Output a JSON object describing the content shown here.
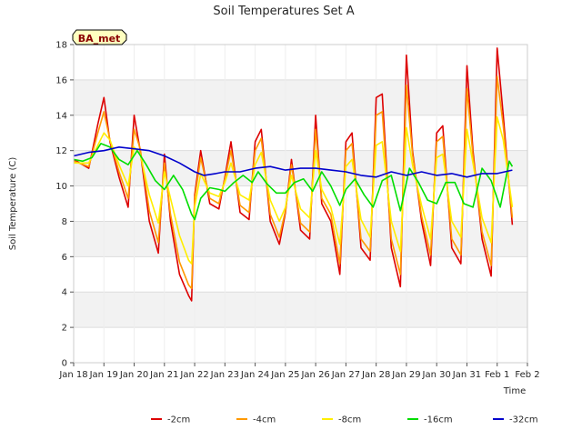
{
  "chart_data": {
    "type": "line",
    "title": "Soil Temperatures Set A",
    "xlabel": "Time",
    "ylabel": "Soil Temperature (C)",
    "badge": "BA_met",
    "ylim": [
      0,
      18
    ],
    "yticks": [
      0,
      2,
      4,
      6,
      8,
      10,
      12,
      14,
      16,
      18
    ],
    "xlim": [
      0,
      15
    ],
    "xticks": [
      {
        "v": 0,
        "label": "Jan 18"
      },
      {
        "v": 1,
        "label": "Jan 19"
      },
      {
        "v": 2,
        "label": "Jan 20"
      },
      {
        "v": 3,
        "label": "Jan 21"
      },
      {
        "v": 4,
        "label": "Jan 22"
      },
      {
        "v": 5,
        "label": "Jan 23"
      },
      {
        "v": 6,
        "label": "Jan 24"
      },
      {
        "v": 7,
        "label": "Jan 25"
      },
      {
        "v": 8,
        "label": "Jan 26"
      },
      {
        "v": 9,
        "label": "Jan 27"
      },
      {
        "v": 10,
        "label": "Jan 28"
      },
      {
        "v": 11,
        "label": "Jan 29"
      },
      {
        "v": 12,
        "label": "Jan 30"
      },
      {
        "v": 13,
        "label": "Jan 31"
      },
      {
        "v": 14,
        "label": "Feb 1"
      },
      {
        "v": 15,
        "label": "Feb 2"
      }
    ],
    "grid": true,
    "legend_position": "bottom",
    "series": [
      {
        "name": "-2cm",
        "color": "#dd0000",
        "x": [
          0,
          0.5,
          0.8,
          1.0,
          1.2,
          1.5,
          1.8,
          2.0,
          2.2,
          2.5,
          2.8,
          3.0,
          3.2,
          3.5,
          3.8,
          3.9,
          4.0,
          4.2,
          4.5,
          4.8,
          5.0,
          5.2,
          5.5,
          5.8,
          6.0,
          6.2,
          6.5,
          6.8,
          7.0,
          7.2,
          7.5,
          7.8,
          8.0,
          8.2,
          8.5,
          8.8,
          9.0,
          9.2,
          9.5,
          9.8,
          10.0,
          10.2,
          10.5,
          10.8,
          11.0,
          11.2,
          11.5,
          11.8,
          12.0,
          12.2,
          12.5,
          12.8,
          13.0,
          13.2,
          13.5,
          13.8,
          14.0,
          14.2,
          14.5
        ],
        "y": [
          11.5,
          11.0,
          13.5,
          15.0,
          12.5,
          10.5,
          8.8,
          14.0,
          12.0,
          8.0,
          6.2,
          11.8,
          8.0,
          5.0,
          3.8,
          3.5,
          9.5,
          12.0,
          9.0,
          8.7,
          10.5,
          12.5,
          8.5,
          8.1,
          12.5,
          13.2,
          8.0,
          6.7,
          8.5,
          11.5,
          7.5,
          7.0,
          14.0,
          9.0,
          8.0,
          5.0,
          12.5,
          13.0,
          6.5,
          5.8,
          15.0,
          15.2,
          6.5,
          4.3,
          17.4,
          12.0,
          8.0,
          5.5,
          13.0,
          13.4,
          6.5,
          5.6,
          16.8,
          12.0,
          7.0,
          4.9,
          17.8,
          14.0,
          7.8
        ]
      },
      {
        "name": "-4cm",
        "color": "#ff9900",
        "x": [
          0,
          0.5,
          0.8,
          1.0,
          1.2,
          1.5,
          1.8,
          2.0,
          2.2,
          2.5,
          2.8,
          3.0,
          3.2,
          3.5,
          3.8,
          3.9,
          4.0,
          4.2,
          4.5,
          4.8,
          5.0,
          5.2,
          5.5,
          5.8,
          6.0,
          6.2,
          6.5,
          6.8,
          7.0,
          7.2,
          7.5,
          7.8,
          8.0,
          8.2,
          8.5,
          8.8,
          9.0,
          9.2,
          9.5,
          9.8,
          10.0,
          10.2,
          10.5,
          10.8,
          11.0,
          11.2,
          11.5,
          11.8,
          12.0,
          12.2,
          12.5,
          12.8,
          13.0,
          13.2,
          13.5,
          13.8,
          14.0,
          14.2,
          14.5
        ],
        "y": [
          11.4,
          11.1,
          13.0,
          14.2,
          12.6,
          10.8,
          9.3,
          13.2,
          12.1,
          8.6,
          6.8,
          11.3,
          8.4,
          5.7,
          4.4,
          4.2,
          9.3,
          11.6,
          9.3,
          9.0,
          10.4,
          12.0,
          8.9,
          8.5,
          12.0,
          12.7,
          8.4,
          7.1,
          8.6,
          11.2,
          7.9,
          7.4,
          13.2,
          9.3,
          8.4,
          5.6,
          12.0,
          12.4,
          7.0,
          6.3,
          14.0,
          14.2,
          7.0,
          5.0,
          15.7,
          11.8,
          8.3,
          6.1,
          12.5,
          12.8,
          7.0,
          6.1,
          15.5,
          11.7,
          7.4,
          5.5,
          16.2,
          13.4,
          8.2
        ]
      },
      {
        "name": "-8cm",
        "color": "#ffee00",
        "x": [
          0,
          0.5,
          0.8,
          1.0,
          1.2,
          1.5,
          1.8,
          2.0,
          2.2,
          2.5,
          2.8,
          3.0,
          3.2,
          3.5,
          3.8,
          3.9,
          4.0,
          4.2,
          4.5,
          4.8,
          5.0,
          5.2,
          5.5,
          5.8,
          6.0,
          6.2,
          6.5,
          6.8,
          7.0,
          7.2,
          7.5,
          7.8,
          8.0,
          8.2,
          8.5,
          8.8,
          9.0,
          9.2,
          9.5,
          9.8,
          10.0,
          10.2,
          10.5,
          10.8,
          11.0,
          11.2,
          11.5,
          11.8,
          12.0,
          12.2,
          12.5,
          12.8,
          13.0,
          13.2,
          13.5,
          13.8,
          14.0,
          14.2,
          14.5
        ],
        "y": [
          11.3,
          11.3,
          12.3,
          13.0,
          12.6,
          11.2,
          10.0,
          12.2,
          11.8,
          9.5,
          7.9,
          10.8,
          9.3,
          7.2,
          5.8,
          5.6,
          8.8,
          10.7,
          9.6,
          9.4,
          10.2,
          11.3,
          9.5,
          9.2,
          11.2,
          11.9,
          9.2,
          8.0,
          8.8,
          10.6,
          8.7,
          8.2,
          12.0,
          9.8,
          8.8,
          6.7,
          11.1,
          11.5,
          8.1,
          7.1,
          12.3,
          12.5,
          8.0,
          6.3,
          13.3,
          11.2,
          8.9,
          7.0,
          11.6,
          11.8,
          8.0,
          7.1,
          13.2,
          11.3,
          8.2,
          6.8,
          13.9,
          12.6,
          8.8
        ]
      },
      {
        "name": "-16cm",
        "color": "#00dd00",
        "x": [
          0,
          0.3,
          0.6,
          0.9,
          1.2,
          1.5,
          1.8,
          2.1,
          2.4,
          2.7,
          3.0,
          3.3,
          3.6,
          3.9,
          4.0,
          4.2,
          4.5,
          4.8,
          5.0,
          5.3,
          5.6,
          5.9,
          6.1,
          6.4,
          6.7,
          7.0,
          7.3,
          7.6,
          7.9,
          8.2,
          8.5,
          8.8,
          9.0,
          9.3,
          9.6,
          9.9,
          10.2,
          10.5,
          10.8,
          11.1,
          11.4,
          11.7,
          12.0,
          12.3,
          12.6,
          12.9,
          13.2,
          13.5,
          13.8,
          14.1,
          14.4,
          14.5
        ],
        "y": [
          11.5,
          11.4,
          11.6,
          12.4,
          12.2,
          11.5,
          11.2,
          12.0,
          11.2,
          10.3,
          9.8,
          10.6,
          9.8,
          8.4,
          8.1,
          9.3,
          9.9,
          9.8,
          9.7,
          10.2,
          10.6,
          10.2,
          10.8,
          10.1,
          9.6,
          9.6,
          10.2,
          10.4,
          9.7,
          10.8,
          10.0,
          8.9,
          9.8,
          10.4,
          9.5,
          8.8,
          10.3,
          10.6,
          8.6,
          11.0,
          10.2,
          9.2,
          9.0,
          10.2,
          10.2,
          9.0,
          8.8,
          11.0,
          10.3,
          8.8,
          11.4,
          11.1
        ]
      },
      {
        "name": "-32cm",
        "color": "#0000cc",
        "x": [
          0,
          0.5,
          1.0,
          1.5,
          2.0,
          2.5,
          3.0,
          3.5,
          4.0,
          4.3,
          4.7,
          5.0,
          5.5,
          6.0,
          6.5,
          7.0,
          7.5,
          8.0,
          8.5,
          9.0,
          9.5,
          10.0,
          10.5,
          11.0,
          11.5,
          12.0,
          12.5,
          13.0,
          13.5,
          14.0,
          14.5
        ],
        "y": [
          11.7,
          11.9,
          12.0,
          12.2,
          12.1,
          12.0,
          11.7,
          11.3,
          10.8,
          10.6,
          10.7,
          10.8,
          10.8,
          11.0,
          11.1,
          10.9,
          11.0,
          11.0,
          10.9,
          10.8,
          10.6,
          10.5,
          10.8,
          10.6,
          10.8,
          10.6,
          10.7,
          10.5,
          10.7,
          10.7,
          10.9
        ]
      }
    ]
  }
}
